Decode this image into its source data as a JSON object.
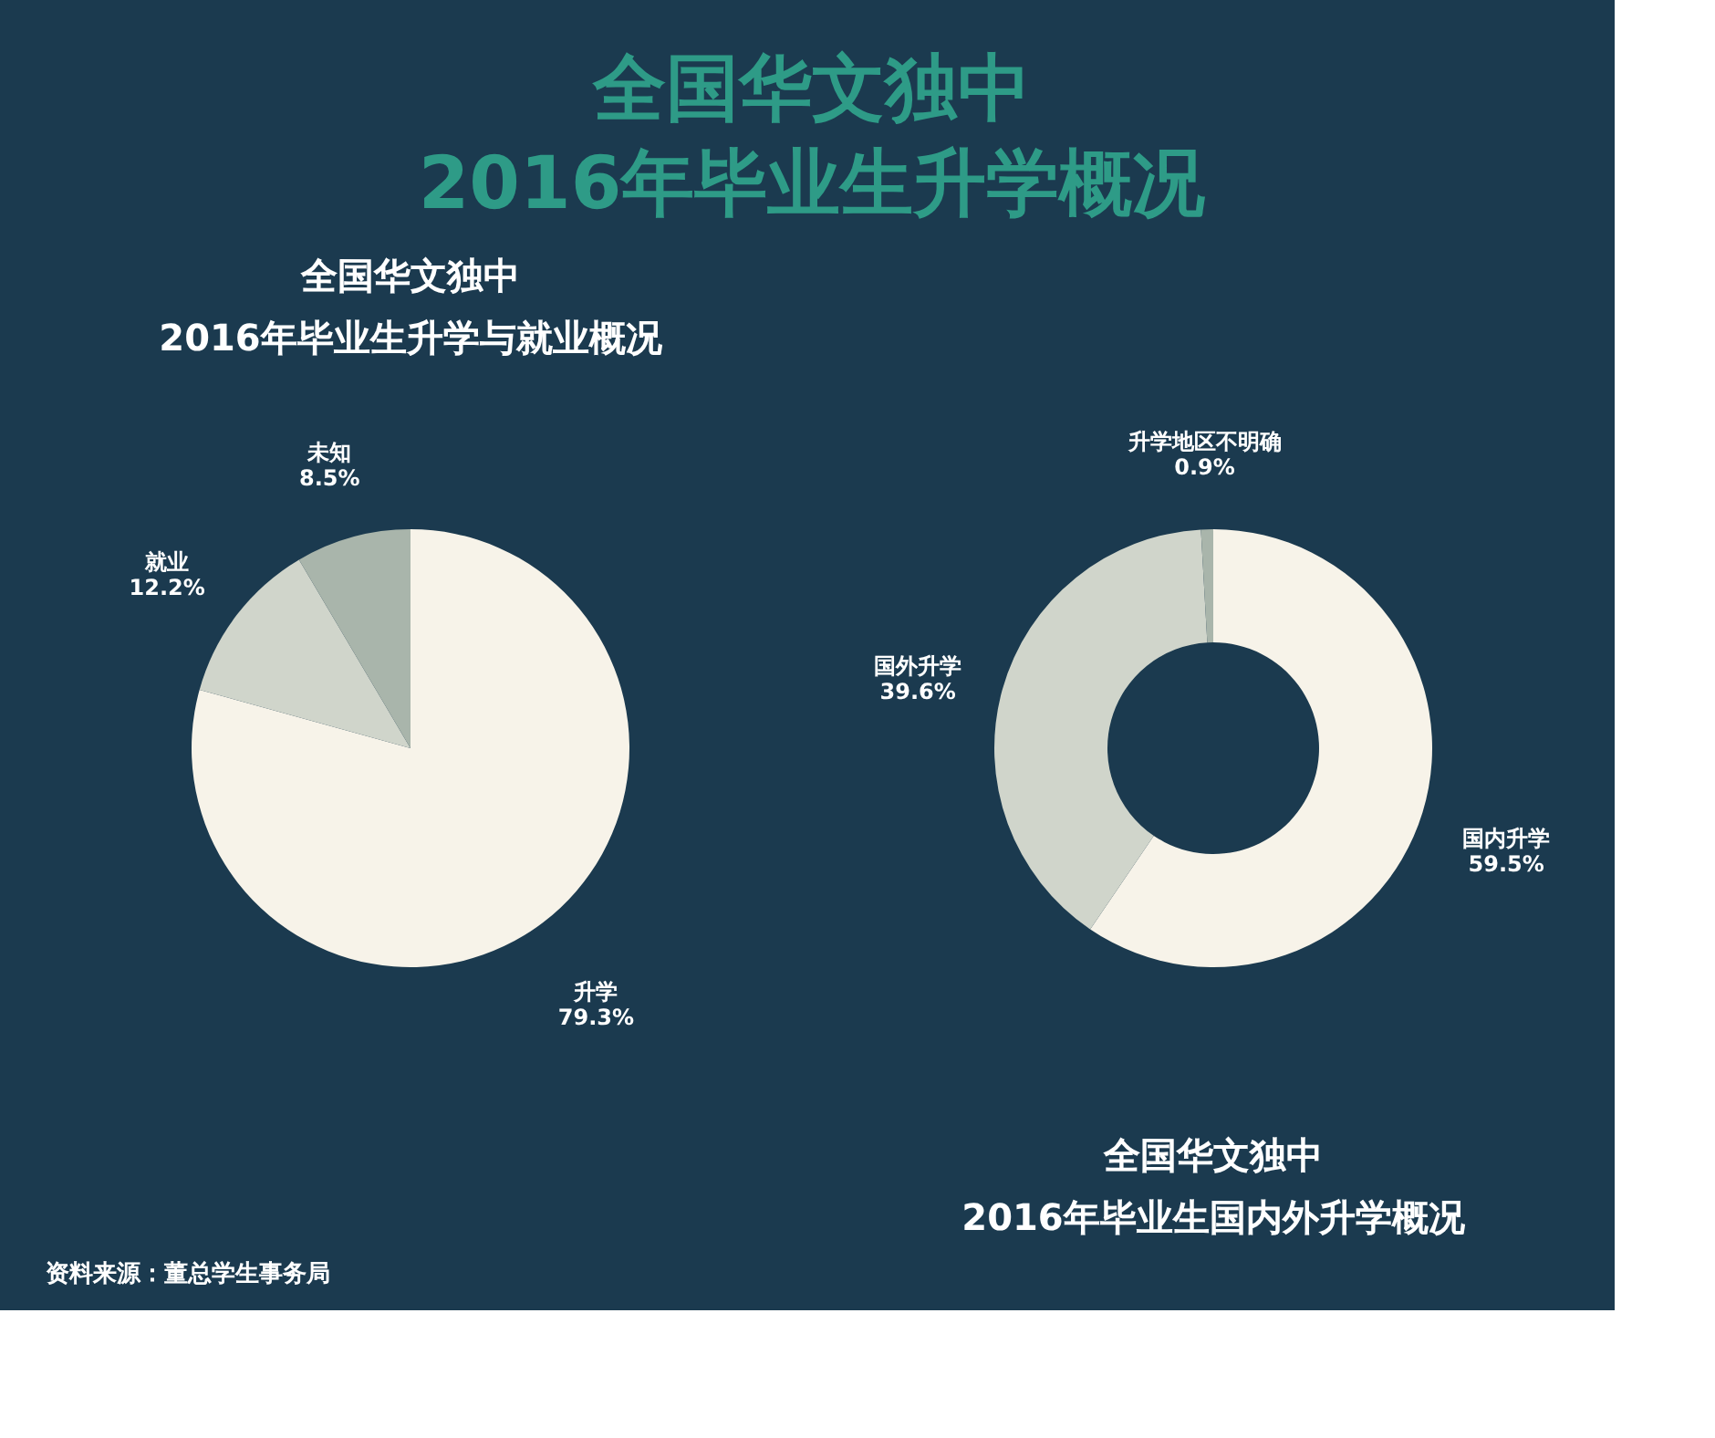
{
  "chart_data": [
    {
      "type": "pie",
      "title": "全国华文独中\n2016年毕业生升学概况",
      "subtitle": "全国华文独中\n2016年毕业生升学与就业概况",
      "categories": [
        "升学",
        "就业",
        "未知"
      ],
      "values": [
        79.3,
        12.2,
        8.5
      ],
      "value_labels": [
        "79.3%",
        "12.2%",
        "8.5%"
      ],
      "colors": [
        "#f7f3e9",
        "#d0d5cb",
        "#a9b5ab"
      ],
      "legend": false,
      "annotations": [
        "资料来源：董总学生事务局"
      ]
    },
    {
      "type": "donut",
      "title": "全国华文独中\n2016年毕业生国内外升学概况",
      "categories": [
        "国内升学",
        "国外升学",
        "升学地区不明确"
      ],
      "values": [
        59.5,
        39.6,
        0.9
      ],
      "value_labels": [
        "59.5%",
        "39.6%",
        "0.9%"
      ],
      "colors": [
        "#f7f3e9",
        "#cfd4ca",
        "#a9b5ab"
      ],
      "legend": false
    }
  ]
}
